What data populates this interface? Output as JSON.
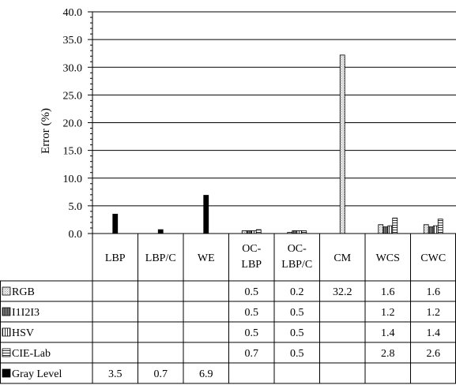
{
  "chart_data": {
    "type": "bar",
    "ylabel": "Error (%)",
    "ylim": [
      0,
      40
    ],
    "yticks": [
      "0.0",
      "5.0",
      "10.0",
      "15.0",
      "20.0",
      "25.0",
      "30.0",
      "35.0",
      "40.0"
    ],
    "grid": true,
    "legend": "data-table",
    "categories": [
      [
        "LBP"
      ],
      [
        "LBP/C"
      ],
      [
        "WE"
      ],
      [
        "OC-",
        "LBP"
      ],
      [
        "OC-",
        "LBP/C"
      ],
      [
        "CM"
      ],
      [
        "WCS"
      ],
      [
        "CWC"
      ]
    ],
    "series": [
      {
        "name": "RGB",
        "pattern": "light-dotted",
        "values": [
          null,
          null,
          null,
          0.5,
          0.2,
          32.2,
          1.6,
          1.6
        ],
        "labels": [
          "",
          "",
          "",
          "0.5",
          "0.2",
          "32.2",
          "1.6",
          "1.6"
        ]
      },
      {
        "name": "I1I2I3",
        "pattern": "dark-vertical",
        "values": [
          null,
          null,
          null,
          0.5,
          0.5,
          null,
          1.2,
          1.2
        ],
        "labels": [
          "",
          "",
          "",
          "0.5",
          "0.5",
          "",
          "1.2",
          "1.2"
        ]
      },
      {
        "name": "HSV",
        "pattern": "vertical-lines",
        "values": [
          null,
          null,
          null,
          0.5,
          0.5,
          null,
          1.4,
          1.4
        ],
        "labels": [
          "",
          "",
          "",
          "0.5",
          "0.5",
          "",
          "1.4",
          "1.4"
        ]
      },
      {
        "name": "CIE-Lab",
        "pattern": "horizontal-lines",
        "values": [
          null,
          null,
          null,
          0.7,
          0.5,
          null,
          2.8,
          2.6
        ],
        "labels": [
          "",
          "",
          "",
          "0.7",
          "0.5",
          "",
          "2.8",
          "2.6"
        ]
      },
      {
        "name": "Gray Level",
        "pattern": "solid-black",
        "values": [
          3.5,
          0.7,
          6.9,
          null,
          null,
          null,
          null,
          null
        ],
        "labels": [
          "3.5",
          "0.7",
          "6.9",
          "",
          "",
          "",
          "",
          ""
        ]
      }
    ]
  }
}
